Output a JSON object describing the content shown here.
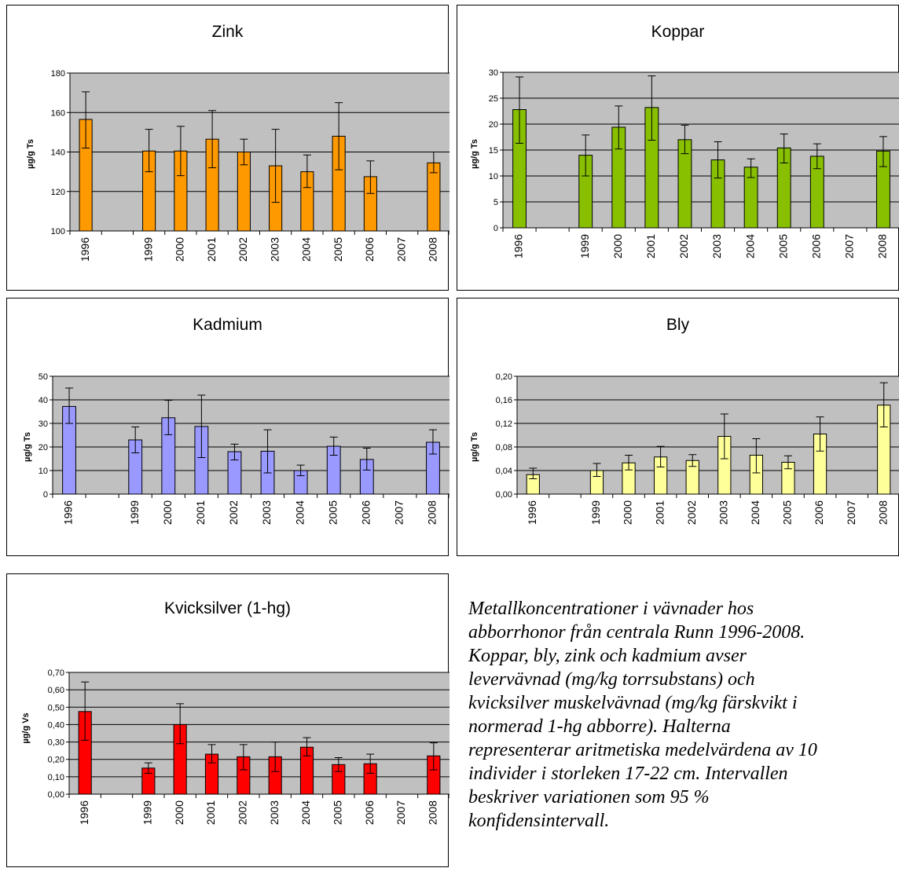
{
  "caption": "Metallkoncentrationer i vävnader hos\nabborrhonor från centrala Runn 1996-2008.\nKoppar, bly, zink och  kadmium avser\nlevervävnad (mg/kg torrsubstans) och\nkvicksilver muskelvävnad (mg/kg färskvikt i\nnormerad 1-hg abborre). Halterna\nrepresenterar aritmetiska medelvärdena av 10\nindivider i storleken 17-22 cm. Intervallen\nbeskriver variationen som 95 %\nkonfidensintervall.",
  "chart_data": [
    {
      "type": "bar",
      "title": "Zink",
      "ylabel": "µg/g Ts",
      "color": "#ff9900",
      "plot_bg": "#c0c0c0",
      "categories": [
        "1996",
        "",
        "1999",
        "2000",
        "2001",
        "2002",
        "2003",
        "2004",
        "2005",
        "2006",
        "2007",
        "2008"
      ],
      "values": [
        156.5,
        null,
        140.5,
        140.5,
        146.5,
        140,
        133,
        130,
        148,
        127.5,
        null,
        134.5
      ],
      "error_low": [
        142,
        null,
        130,
        128,
        132,
        133.5,
        114.5,
        122,
        131,
        119,
        null,
        129.5
      ],
      "error_high": [
        170.5,
        null,
        151.5,
        153,
        161,
        146.5,
        151.5,
        138.5,
        165,
        135.5,
        null,
        140
      ],
      "ylim": [
        100,
        180
      ],
      "yticks": [
        "100",
        "120",
        "140",
        "160",
        "180"
      ]
    },
    {
      "type": "bar",
      "title": "Koppar",
      "ylabel": "µg/g Ts",
      "color": "#88c000",
      "plot_bg": "#c0c0c0",
      "categories": [
        "1996",
        "",
        "1999",
        "2000",
        "2001",
        "2002",
        "2003",
        "2004",
        "2005",
        "2006",
        "2007",
        "2008"
      ],
      "values": [
        22.8,
        null,
        14,
        19.4,
        23.2,
        17,
        13.1,
        11.7,
        15.4,
        13.8,
        null,
        14.8
      ],
      "error_low": [
        16.3,
        null,
        10,
        15.2,
        16.9,
        14.3,
        9.6,
        9.7,
        12.5,
        11.4,
        null,
        11.8
      ],
      "error_high": [
        29.1,
        null,
        17.9,
        23.5,
        29.3,
        19.8,
        16.6,
        13.3,
        18.1,
        16.2,
        null,
        17.6
      ],
      "ylim": [
        0,
        30
      ],
      "yticks": [
        "0",
        "5",
        "10",
        "15",
        "20",
        "25",
        "30"
      ]
    },
    {
      "type": "bar",
      "title": "Kadmium",
      "ylabel": "µg/g Ts",
      "color": "#9999ff",
      "plot_bg": "#c0c0c0",
      "categories": [
        "1996",
        "",
        "1999",
        "2000",
        "2001",
        "2002",
        "2003",
        "2004",
        "2005",
        "2006",
        "2007",
        "2008"
      ],
      "values": [
        37.2,
        null,
        23,
        32.4,
        28.7,
        18,
        18.2,
        10,
        20.3,
        14.7,
        null,
        22
      ],
      "error_low": [
        30,
        null,
        17.5,
        25.2,
        15.5,
        14.5,
        9,
        7.8,
        16.5,
        10.2,
        null,
        17
      ],
      "error_high": [
        45,
        null,
        28.5,
        39.8,
        42,
        21.2,
        27.3,
        12.3,
        24.2,
        19.5,
        null,
        27.3
      ],
      "ylim": [
        0,
        50
      ],
      "yticks": [
        "0",
        "10",
        "20",
        "30",
        "40",
        "50"
      ]
    },
    {
      "type": "bar",
      "title": "Bly",
      "ylabel": "µg/g Ts",
      "color": "#ffff99",
      "plot_bg": "#c0c0c0",
      "categories": [
        "1996",
        "",
        "1999",
        "2000",
        "2001",
        "2002",
        "2003",
        "2004",
        "2005",
        "2006",
        "2007",
        "2008"
      ],
      "values": [
        0.033,
        null,
        0.04,
        0.053,
        0.063,
        0.057,
        0.098,
        0.066,
        0.054,
        0.102,
        null,
        0.151
      ],
      "error_low": [
        0.026,
        null,
        0.03,
        0.041,
        0.046,
        0.047,
        0.06,
        0.036,
        0.043,
        0.073,
        null,
        0.114
      ],
      "error_high": [
        0.044,
        null,
        0.052,
        0.066,
        0.081,
        0.067,
        0.136,
        0.094,
        0.065,
        0.131,
        null,
        0.189
      ],
      "ylim": [
        0,
        0.2
      ],
      "yticks": [
        "0,00",
        "0,04",
        "0,08",
        "0,12",
        "0,16",
        "0,20"
      ]
    },
    {
      "type": "bar",
      "title": "Kvicksilver (1-hg)",
      "ylabel": "µg/g Vs",
      "color": "#ff0000",
      "plot_bg": "#c0c0c0",
      "categories": [
        "1996",
        "",
        "1999",
        "2000",
        "2001",
        "2002",
        "2003",
        "2004",
        "2005",
        "2006",
        "2007",
        "2008"
      ],
      "values": [
        0.475,
        null,
        0.15,
        0.4,
        0.23,
        0.215,
        0.215,
        0.27,
        0.17,
        0.175,
        null,
        0.22
      ],
      "error_low": [
        0.31,
        null,
        0.12,
        0.29,
        0.18,
        0.14,
        0.13,
        0.22,
        0.13,
        0.12,
        null,
        0.14
      ],
      "error_high": [
        0.645,
        null,
        0.18,
        0.52,
        0.285,
        0.285,
        0.3,
        0.325,
        0.21,
        0.23,
        null,
        0.295
      ],
      "ylim": [
        0,
        0.7
      ],
      "yticks": [
        "0,00",
        "0,10",
        "0,20",
        "0,30",
        "0,40",
        "0,50",
        "0,60",
        "0,70"
      ]
    }
  ]
}
